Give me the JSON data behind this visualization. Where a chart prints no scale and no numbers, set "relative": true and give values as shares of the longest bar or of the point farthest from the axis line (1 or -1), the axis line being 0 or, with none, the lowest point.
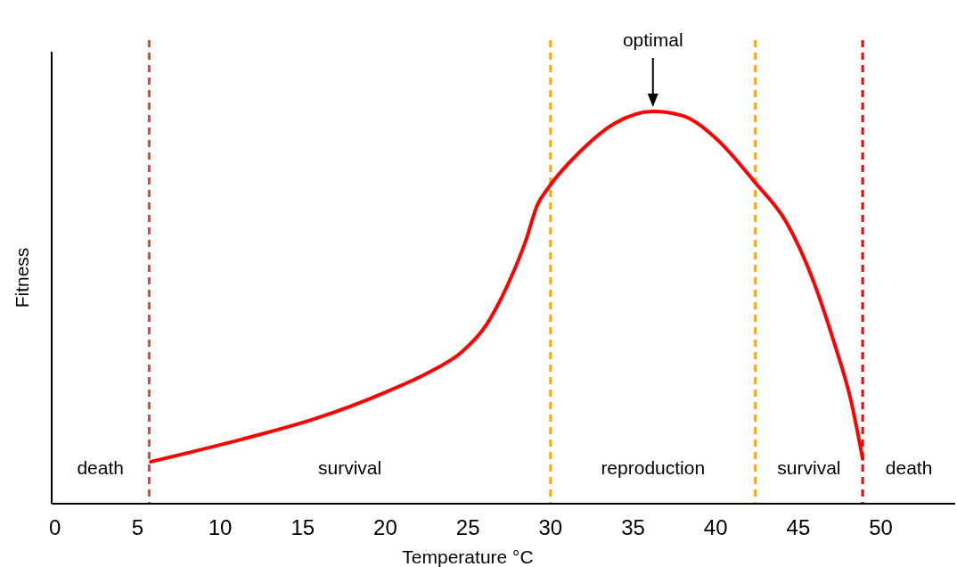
{
  "chart_data": {
    "type": "line",
    "xlabel": "Temperature °C",
    "ylabel": "Fitness",
    "relative": true,
    "x": [
      5.8,
      11.3,
      15.7,
      20,
      22.6,
      24.6,
      26.1,
      27.4,
      28.5,
      29.2,
      29.9,
      31.8,
      33.9,
      36.2,
      38,
      40,
      42.4,
      44.3,
      45.8,
      47.1,
      48.2,
      48.9
    ],
    "series": [
      {
        "color": "#ff0000",
        "values": [
          0.107,
          0.164,
          0.216,
          0.284,
          0.334,
          0.386,
          0.455,
          0.557,
          0.67,
          0.761,
          0.807,
          0.898,
          0.97,
          1,
          0.989,
          0.932,
          0.818,
          0.716,
          0.58,
          0.42,
          0.261,
          0.114
        ]
      }
    ],
    "xlim": [
      -0.2,
      54.5
    ],
    "xticks": [
      0,
      5,
      10,
      15,
      20,
      25,
      30,
      35,
      40,
      45,
      50
    ],
    "ref_lines": [
      {
        "axis": "x",
        "value": 5.7,
        "color": "#c0504d",
        "line_style": "dashed"
      },
      {
        "axis": "x",
        "value": 30,
        "color": "#ffa500",
        "line_style": "dashed"
      },
      {
        "axis": "x",
        "value": 42.4,
        "color": "#ffa500",
        "line_style": "dashed"
      },
      {
        "axis": "x",
        "value": 48.9,
        "color": "#ff0000",
        "line_style": "dashed"
      }
    ],
    "annotations": [
      "death",
      "survival",
      "reproduction",
      "survival",
      "death",
      "optimal"
    ],
    "grid": false
  }
}
